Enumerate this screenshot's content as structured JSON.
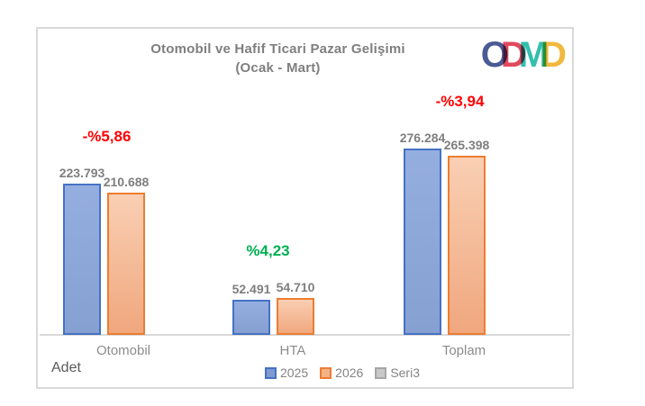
{
  "title": {
    "line1": "Otomobil ve Hafif Ticari Pazar Gelişimi",
    "line2": "(Ocak - Mart)"
  },
  "logo": {
    "letters": [
      {
        "char": "O",
        "color": "#4A5A94"
      },
      {
        "char": "D",
        "color": "#E2495D"
      },
      {
        "char": "M",
        "color": "#33BFAE"
      },
      {
        "char": "D",
        "color": "#F0B93E"
      }
    ]
  },
  "axis_label": "Adet",
  "legend": [
    {
      "label": "2025",
      "fill": "#7E9AD0",
      "border": "#4472C4"
    },
    {
      "label": "2026",
      "fill": "#F4B287",
      "border": "#ED7D31"
    },
    {
      "label": "Seri3",
      "fill": "#C9C9C9",
      "border": "#A6A6A6"
    }
  ],
  "colors": {
    "bar_2025_fill": "#8EA9DB",
    "bar_2025_border": "#4472C4",
    "bar_2026_fill": "#F5BE9C",
    "bar_2026_border": "#ED7D31",
    "negative_change": "#FF0000",
    "positive_change": "#00B050",
    "text_gray": "#7F7F7F",
    "card_border": "#D9D9D9"
  },
  "chart_data": {
    "type": "bar",
    "title": "Otomobil ve Hafif Ticari Pazar Gelişimi (Ocak - Mart)",
    "xlabel": "",
    "ylabel": "Adet",
    "ylim": [
      0,
      300000
    ],
    "grid": false,
    "legend_position": "bottom",
    "categories": [
      "Otomobil",
      "HTA",
      "Toplam"
    ],
    "series": [
      {
        "name": "2025",
        "values": [
          223793,
          52491,
          276284
        ]
      },
      {
        "name": "2026",
        "values": [
          210688,
          54710,
          265398
        ]
      },
      {
        "name": "Seri3",
        "values": [
          null,
          null,
          null
        ]
      }
    ],
    "value_labels": [
      [
        "223.793",
        "52.491",
        "276.284"
      ],
      [
        "210.688",
        "54.710",
        "265.398"
      ]
    ],
    "change_labels": [
      {
        "text": "-%5,86",
        "color": "#FF0000"
      },
      {
        "text": "%4,23",
        "color": "#00B050"
      },
      {
        "text": "-%3,94",
        "color": "#FF0000"
      }
    ]
  }
}
